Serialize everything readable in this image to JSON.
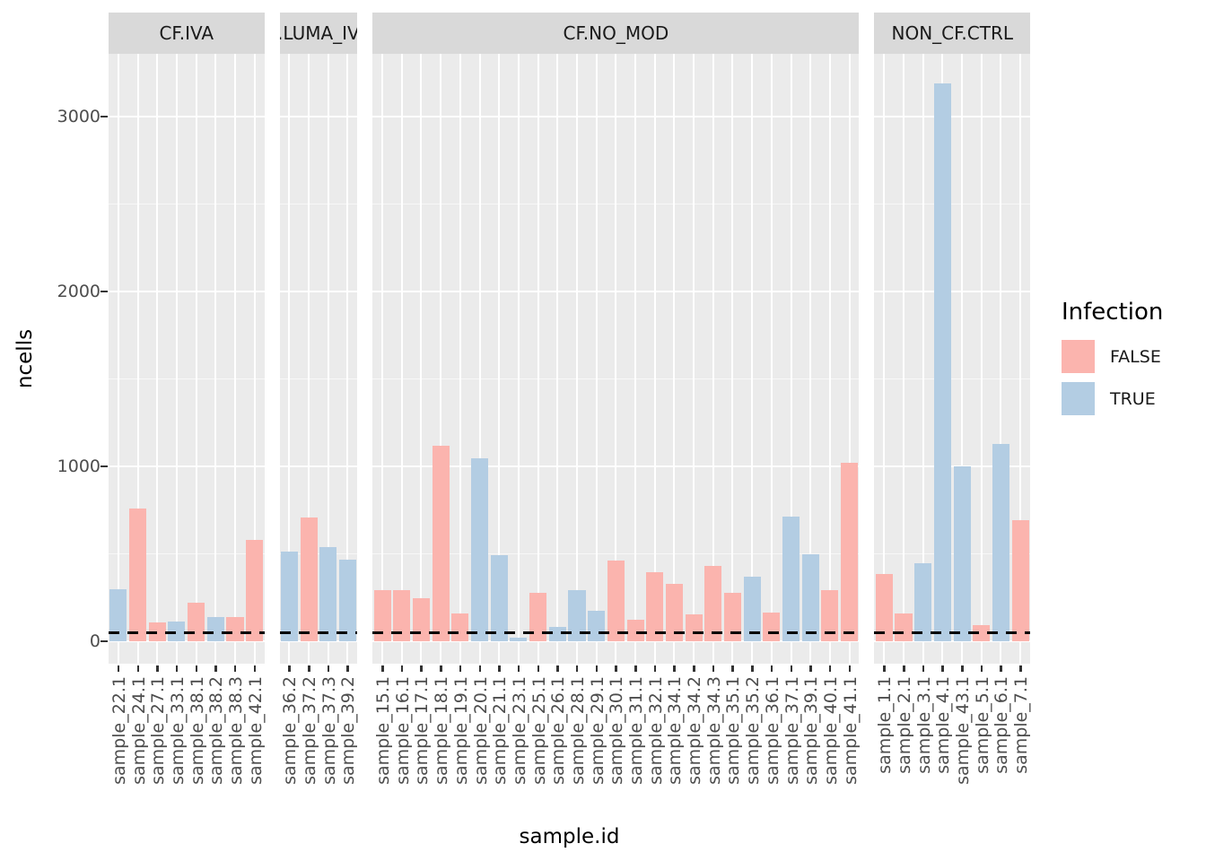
{
  "figure": {
    "y_axis": {
      "title": "ncells"
    },
    "x_axis": {
      "title": "sample.id"
    }
  },
  "colors": {
    "panel_background": "#EBEBEB",
    "strip_background": "#D9D9D9",
    "major_gridline": "#FFFFFF",
    "minor_gridline": "#F7F7F7",
    "dashed_line": "#000000",
    "axis_text": "#4D4D4D",
    "fill_false": "#FBB4AE",
    "fill_true": "#B3CDE3"
  },
  "chart_data": {
    "type": "bar",
    "title": "",
    "xlabel": "sample.id",
    "ylabel": "ncells",
    "ylim": [
      0,
      3359
    ],
    "yticks": [
      0,
      1000,
      2000,
      3000
    ],
    "grid": "on",
    "legend_position": "right",
    "hline": {
      "value": 50,
      "style": "dashed",
      "color": "#000000"
    },
    "legend": {
      "title": "Infection",
      "entries": [
        {
          "label": "FALSE",
          "color": "#FBB4AE"
        },
        {
          "label": "TRUE",
          "color": "#B3CDE3"
        }
      ]
    },
    "facets": [
      {
        "label": "CF.IVA",
        "bars": [
          {
            "id": "sample_22.1",
            "infection": "TRUE",
            "ncells": 300
          },
          {
            "id": "sample_24.1",
            "infection": "FALSE",
            "ncells": 760
          },
          {
            "id": "sample_27.1",
            "infection": "FALSE",
            "ncells": 110
          },
          {
            "id": "sample_33.1",
            "infection": "TRUE",
            "ncells": 115
          },
          {
            "id": "sample_38.1",
            "infection": "FALSE",
            "ncells": 220
          },
          {
            "id": "sample_38.2",
            "infection": "TRUE",
            "ncells": 140
          },
          {
            "id": "sample_38.3",
            "infection": "FALSE",
            "ncells": 140
          },
          {
            "id": "sample_42.1",
            "infection": "FALSE",
            "ncells": 580
          }
        ]
      },
      {
        "label": ".LUMA_IV",
        "bars": [
          {
            "id": "sample_36.2",
            "infection": "TRUE",
            "ncells": 515
          },
          {
            "id": "sample_37.2",
            "infection": "FALSE",
            "ncells": 710
          },
          {
            "id": "sample_37.3",
            "infection": "TRUE",
            "ncells": 540
          },
          {
            "id": "sample_39.2",
            "infection": "TRUE",
            "ncells": 465
          }
        ]
      },
      {
        "label": "CF.NO_MOD",
        "bars": [
          {
            "id": "sample_15.1",
            "infection": "FALSE",
            "ncells": 290
          },
          {
            "id": "sample_16.1",
            "infection": "FALSE",
            "ncells": 290
          },
          {
            "id": "sample_17.1",
            "infection": "FALSE",
            "ncells": 245
          },
          {
            "id": "sample_18.1",
            "infection": "FALSE",
            "ncells": 1120
          },
          {
            "id": "sample_19.1",
            "infection": "FALSE",
            "ncells": 160
          },
          {
            "id": "sample_20.1",
            "infection": "TRUE",
            "ncells": 1045
          },
          {
            "id": "sample_21.1",
            "infection": "TRUE",
            "ncells": 495
          },
          {
            "id": "sample_23.1",
            "infection": "TRUE",
            "ncells": 20
          },
          {
            "id": "sample_25.1",
            "infection": "FALSE",
            "ncells": 275
          },
          {
            "id": "sample_26.1",
            "infection": "TRUE",
            "ncells": 80
          },
          {
            "id": "sample_28.1",
            "infection": "TRUE",
            "ncells": 295
          },
          {
            "id": "sample_29.1",
            "infection": "TRUE",
            "ncells": 175
          },
          {
            "id": "sample_30.1",
            "infection": "FALSE",
            "ncells": 460
          },
          {
            "id": "sample_31.1",
            "infection": "FALSE",
            "ncells": 125
          },
          {
            "id": "sample_32.1",
            "infection": "FALSE",
            "ncells": 395
          },
          {
            "id": "sample_34.1",
            "infection": "FALSE",
            "ncells": 330
          },
          {
            "id": "sample_34.2",
            "infection": "FALSE",
            "ncells": 155
          },
          {
            "id": "sample_34.3",
            "infection": "FALSE",
            "ncells": 430
          },
          {
            "id": "sample_35.1",
            "infection": "FALSE",
            "ncells": 275
          },
          {
            "id": "sample_35.2",
            "infection": "TRUE",
            "ncells": 370
          },
          {
            "id": "sample_36.1",
            "infection": "FALSE",
            "ncells": 165
          },
          {
            "id": "sample_37.1",
            "infection": "TRUE",
            "ncells": 715
          },
          {
            "id": "sample_39.1",
            "infection": "TRUE",
            "ncells": 500
          },
          {
            "id": "sample_40.1",
            "infection": "FALSE",
            "ncells": 290
          },
          {
            "id": "sample_41.1",
            "infection": "FALSE",
            "ncells": 1020
          }
        ]
      },
      {
        "label": "NON_CF.CTRL",
        "bars": [
          {
            "id": "sample_1.1",
            "infection": "FALSE",
            "ncells": 385
          },
          {
            "id": "sample_2.1",
            "infection": "FALSE",
            "ncells": 160
          },
          {
            "id": "sample_3.1",
            "infection": "TRUE",
            "ncells": 445
          },
          {
            "id": "sample_4.1",
            "infection": "TRUE",
            "ncells": 3190
          },
          {
            "id": "sample_43.1",
            "infection": "TRUE",
            "ncells": 1000
          },
          {
            "id": "sample_5.1",
            "infection": "FALSE",
            "ncells": 90
          },
          {
            "id": "sample_6.1",
            "infection": "TRUE",
            "ncells": 1130
          },
          {
            "id": "sample_7.1",
            "infection": "FALSE",
            "ncells": 690
          }
        ]
      }
    ]
  }
}
